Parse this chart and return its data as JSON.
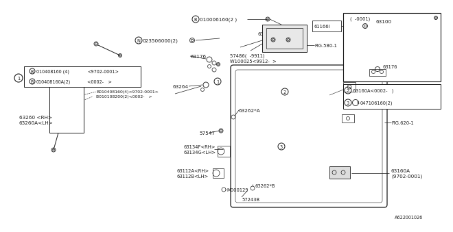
{
  "bg_color": "#ffffff",
  "line_color": "#1a1a1a",
  "fs": 5.2,
  "parts": {
    "b010006160": "B010006160(2 )",
    "n023506000": "N023506000(2)",
    "ref1_b1": "B010408160 (4)",
    "ref1_b1_date": "<9702-0001>",
    "ref1_b2": "B010408160A(2)",
    "ref1_b2_date": "<0002-   >",
    "ref2_b1": "B010408160(4)<9702-0001>",
    "ref2_b2": "B010108200(2)<0002-   >",
    "p63176": "63176",
    "p63160": "63160",
    "p61166I": "61166I",
    "p63100": "63100",
    "fig580": "FIG.580-1",
    "p57486": "57486(  -9911)",
    "w100025": "W100025<9912-  >",
    "p63264": "63264",
    "p63260": "63260 <RH>",
    "p63260A": "63260A<LH>",
    "p63262A": "63262*A",
    "p57547": "57547",
    "p63134F": "63134F<RH>",
    "p63134G": "63134G<LH>",
    "p63112A": "63112A<RH>",
    "p63112B": "63112B<LH>",
    "p63262B": "63262*B",
    "pM000129": "M000129",
    "p57243B": "57243B",
    "p63160A": "63160A",
    "p63160A_date": "(9702-0001)",
    "fig620": "FIG.620-1",
    "inset_date": "(  -0001)",
    "inset_63176": "63176",
    "ref2_63160A": "63160A<0002-   )",
    "ref3_s": "S047106160(2)",
    "diagram_code": "A622001026"
  }
}
